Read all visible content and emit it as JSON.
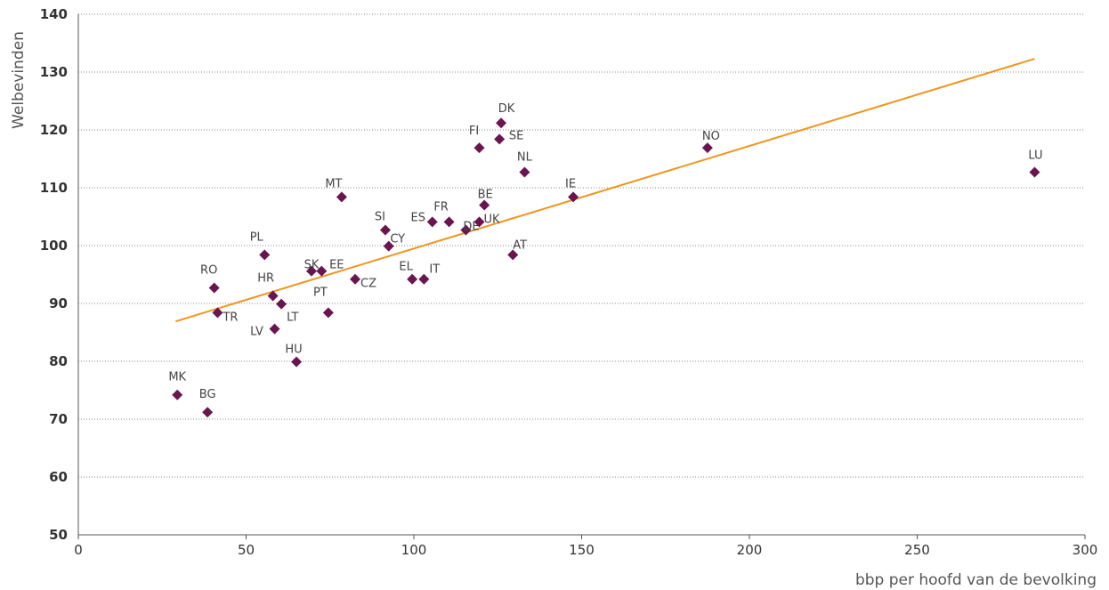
{
  "chart_data": {
    "type": "scatter",
    "title": "",
    "xlabel": "bbp per hoofd van de bevolking",
    "ylabel": "Welbevinden",
    "xlim": [
      0,
      300
    ],
    "ylim": [
      50,
      140
    ],
    "xticks": [
      0,
      50,
      100,
      150,
      200,
      250,
      300
    ],
    "yticks": [
      50,
      60,
      70,
      80,
      90,
      100,
      110,
      120,
      130,
      140
    ],
    "grid": "horizontal dotted",
    "colors": {
      "marker": "#6b1550",
      "trendline": "#f0951e"
    },
    "trendline": {
      "x": [
        29,
        285
      ],
      "y": [
        86.9,
        132.3
      ]
    },
    "points": [
      {
        "label": "MK",
        "x": 29.5,
        "y": 74.2
      },
      {
        "label": "BG",
        "x": 38.5,
        "y": 71.2
      },
      {
        "label": "RO",
        "x": 40.5,
        "y": 92.7
      },
      {
        "label": "TR",
        "x": 41.5,
        "y": 88.4
      },
      {
        "label": "PL",
        "x": 55.5,
        "y": 98.4
      },
      {
        "label": "HR",
        "x": 58,
        "y": 91.3
      },
      {
        "label": "LV",
        "x": 58.5,
        "y": 85.6
      },
      {
        "label": "LT",
        "x": 60.5,
        "y": 89.9
      },
      {
        "label": "HU",
        "x": 65,
        "y": 79.9
      },
      {
        "label": "SK",
        "x": 69.5,
        "y": 95.6
      },
      {
        "label": "EE",
        "x": 72.5,
        "y": 95.6
      },
      {
        "label": "PT",
        "x": 74.5,
        "y": 88.4
      },
      {
        "label": "MT",
        "x": 78.5,
        "y": 108.4
      },
      {
        "label": "CZ",
        "x": 82.5,
        "y": 94.2
      },
      {
        "label": "SI",
        "x": 91.5,
        "y": 102.7
      },
      {
        "label": "CY",
        "x": 92.5,
        "y": 99.9
      },
      {
        "label": "EL",
        "x": 99.5,
        "y": 94.2
      },
      {
        "label": "IT",
        "x": 103,
        "y": 94.2
      },
      {
        "label": "ES",
        "x": 105.5,
        "y": 104.1
      },
      {
        "label": "FR",
        "x": 110.5,
        "y": 104.1
      },
      {
        "label": "DE",
        "x": 115.5,
        "y": 102.7
      },
      {
        "label": "UK",
        "x": 119.5,
        "y": 104.1
      },
      {
        "label": "BE",
        "x": 121,
        "y": 107.0
      },
      {
        "label": "FI",
        "x": 119.5,
        "y": 116.9
      },
      {
        "label": "SE",
        "x": 125.5,
        "y": 118.4
      },
      {
        "label": "DK",
        "x": 126,
        "y": 121.2
      },
      {
        "label": "AT",
        "x": 129.5,
        "y": 98.4
      },
      {
        "label": "NL",
        "x": 133,
        "y": 112.7
      },
      {
        "label": "IE",
        "x": 147.5,
        "y": 108.4
      },
      {
        "label": "NO",
        "x": 187.5,
        "y": 116.9
      },
      {
        "label": "LU",
        "x": 285,
        "y": 112.7
      }
    ]
  }
}
